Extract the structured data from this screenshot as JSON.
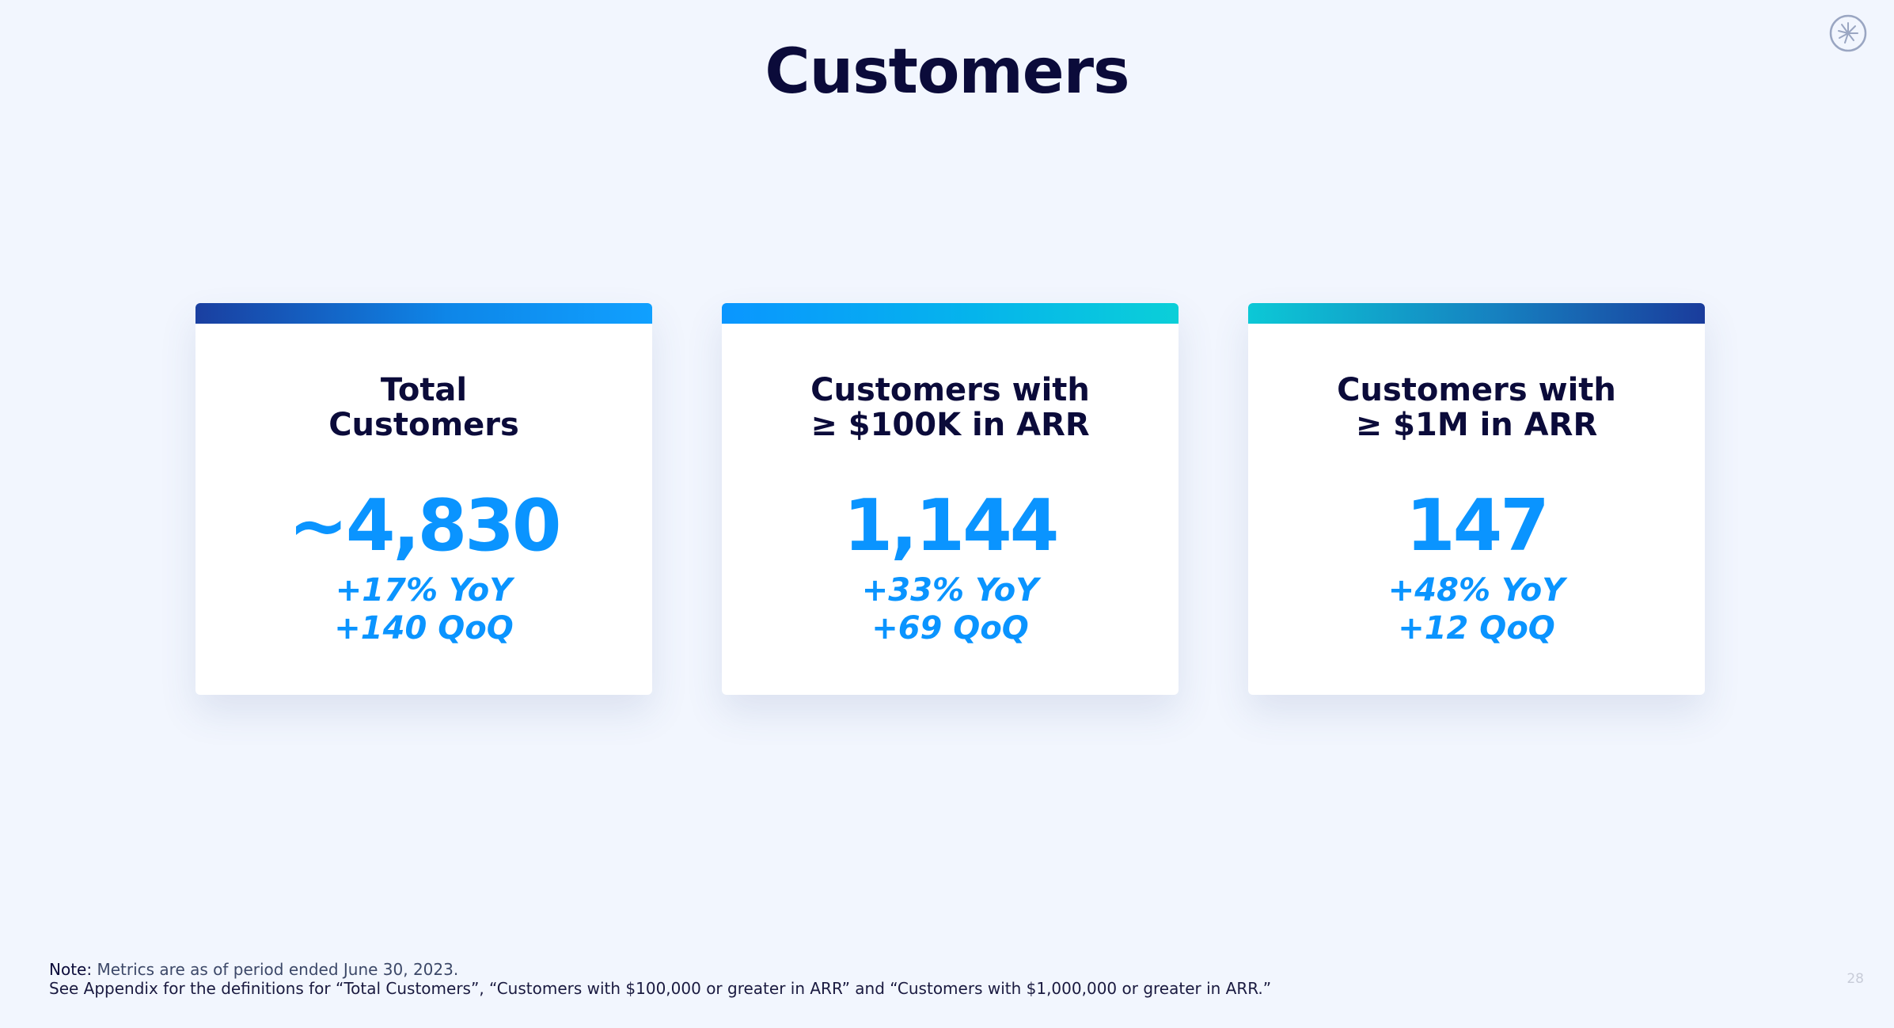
{
  "page": {
    "title": "Customers",
    "page_number": "28"
  },
  "cards": [
    {
      "label_line1": "Total",
      "label_line2": "Customers",
      "value": "~4,830",
      "yoy": "+17% YoY",
      "qoq": "+140 QoQ"
    },
    {
      "label_line1": "Customers with",
      "label_line2": "≥ $100K in ARR",
      "value": "1,144",
      "yoy": "+33% YoY",
      "qoq": "+69 QoQ"
    },
    {
      "label_line1": "Customers with",
      "label_line2": "≥ $1M in ARR",
      "value": "147",
      "yoy": "+48% YoY",
      "qoq": "+12 QoQ"
    }
  ],
  "footnote": {
    "note_label": "Note:",
    "note_text": "Metrics are as of period ended June 30, 2023.",
    "definitions": "See Appendix for the definitions for “Total Customers”, “Customers with $100,000 or greater in ARR” and “Customers with $1,000,000 or greater in ARR.”"
  },
  "colors": {
    "background": "#f2f6fe",
    "title_text": "#0b0b3a",
    "accent_blue": "#0a94ff",
    "bar_dark_blue": "#1a3fa0",
    "bar_cyan": "#0bcfd8"
  },
  "icons": {
    "logo": "starburst-logo-icon"
  }
}
